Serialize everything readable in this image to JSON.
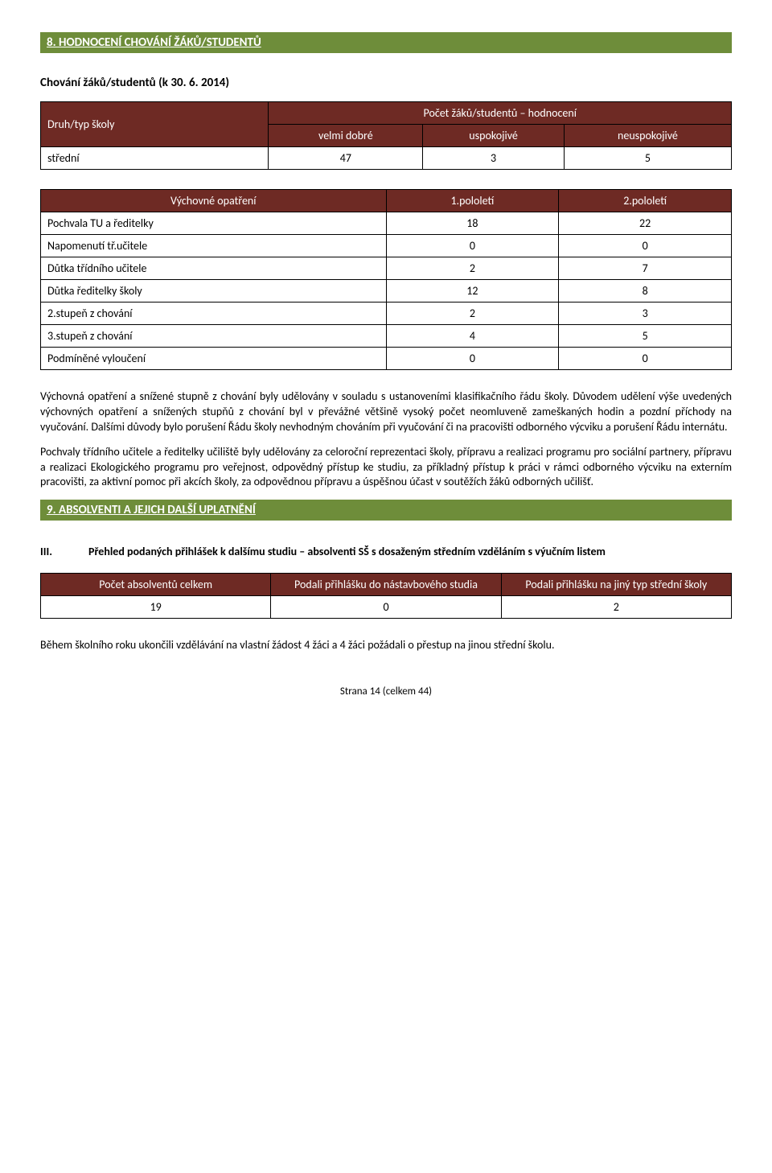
{
  "section8": {
    "header": "8. HODNOCENÍ CHOVÁNÍ ŽÁKŮ/STUDENTŮ",
    "subtitle": "Chování žáků/studentů (k 30. 6. 2014)",
    "table1": {
      "row1_col1": "Druh/typ školy",
      "row1_merged": "Počet žáků/studentů – hodnocení",
      "row2_c1": "velmi dobré",
      "row2_c2": "uspokojivé",
      "row2_c3": "neuspokojivé",
      "data_label": "střední",
      "data_v1": "47",
      "data_v2": "3",
      "data_v3": "5"
    },
    "table2": {
      "h1": "Výchovné opatření",
      "h2": "1.pololetí",
      "h3": "2.pololetí",
      "rows": [
        {
          "label": "Pochvala TU a ředitelky",
          "v1": "18",
          "v2": "22"
        },
        {
          "label": "Napomenutí tř.učitele",
          "v1": "0",
          "v2": "0"
        },
        {
          "label": "Důtka třídního učitele",
          "v1": "2",
          "v2": "7"
        },
        {
          "label": "Důtka ředitelky školy",
          "v1": "12",
          "v2": "8"
        },
        {
          "label": "2.stupeň z chování",
          "v1": "2",
          "v2": "3"
        },
        {
          "label": "3.stupeň z chování",
          "v1": "4",
          "v2": "5"
        },
        {
          "label": "Podmíněné vyloučení",
          "v1": "0",
          "v2": "0"
        }
      ]
    },
    "para1": "Výchovná opatření a snížené stupně z chování byly udělovány v souladu s ustanoveními klasifikačního řádu školy. Důvodem udělení výše uvedených výchovných opatření a snížených stupňů z chování byl v převážné většině vysoký počet neomluveně zameškaných hodin a pozdní příchody na vyučování. Dalšími důvody bylo porušení Řádu školy nevhodným chováním při vyučování či na pracovišti odborného výcviku a porušení Řádu internátu.",
    "para2": "Pochvaly třídního učitele a ředitelky učiliště byly udělovány za celoroční reprezentaci školy, přípravu a realizaci programu pro sociální partnery, přípravu a realizaci Ekologického programu pro veřejnost, odpovědný přístup ke studiu, za příkladný přístup k práci v rámci odborného výcviku na externím pracovišti, za aktivní pomoc při akcích školy, za odpovědnou přípravu a úspěšnou účast v soutěžích žáků odborných učilišť."
  },
  "section9": {
    "header": "9. ABSOLVENTI A JEJICH DALŠÍ UPLATNĚNÍ",
    "roman": "III.",
    "roman_text": "Přehled podaných přihlášek k dalšímu studiu – absolventi SŠ s dosaženým středním vzděláním s výučním listem",
    "table3": {
      "h1": "Počet absolventů celkem",
      "h2": "Podali přihlášku do nástavbového studia",
      "h3": "Podali přihlášku na jiný typ střední školy",
      "v1": "19",
      "v2": "0",
      "v3": "2"
    },
    "para": "Během školního roku ukončili vzdělávání na vlastní žádost 4 žáci a 4 žáci požádali o přestup na jinou střední školu."
  },
  "footer": "Strana 14 (celkem 44)"
}
